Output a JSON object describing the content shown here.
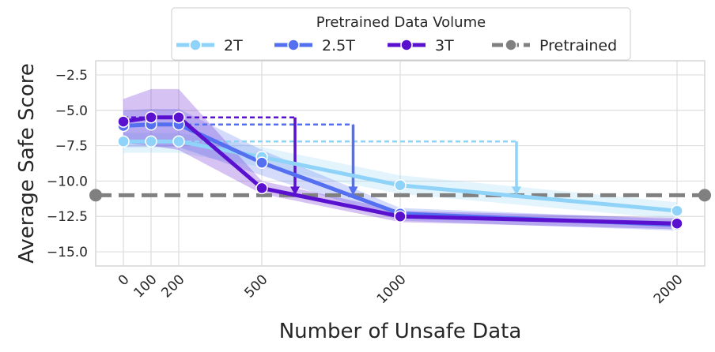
{
  "chart_data": {
    "type": "line",
    "title": "",
    "xlabel": "Number of Unsafe Data",
    "ylabel": "Average Safe Score",
    "x": [
      0,
      100,
      200,
      500,
      1000,
      2000
    ],
    "x_tick_labels": [
      "0",
      "100",
      "200",
      "500",
      "1000",
      "2000"
    ],
    "xlim": [
      -100,
      2100
    ],
    "ylim": [
      -16,
      -1.5
    ],
    "y_ticks": [
      -2.5,
      -5.0,
      -7.5,
      -10.0,
      -12.5,
      -15.0
    ],
    "y_tick_labels": [
      "−2.5",
      "−5.0",
      "−7.5",
      "−10.0",
      "−12.5",
      "−15.0"
    ],
    "grid": true,
    "legend": {
      "title": "Pretrained Data Volume",
      "placement": "top-center",
      "entries": [
        "2T",
        "2.5T",
        "3T",
        "Pretrained"
      ]
    },
    "series": [
      {
        "name": "2T",
        "color": "#8fd3f8",
        "values": [
          -7.2,
          -7.2,
          -7.2,
          -8.3,
          -10.3,
          -12.1
        ],
        "band_low": [
          -8.0,
          -8.0,
          -8.0,
          -9.0,
          -10.9,
          -12.7
        ],
        "band_high": [
          -6.6,
          -6.6,
          -6.6,
          -7.6,
          -9.6,
          -11.5
        ]
      },
      {
        "name": "2.5T",
        "color": "#5470f0",
        "values": [
          -6.1,
          -6.0,
          -6.0,
          -8.7,
          -12.3,
          -13.1
        ],
        "band_low": [
          -7.6,
          -7.6,
          -7.6,
          -9.6,
          -12.8,
          -13.5
        ],
        "band_high": [
          -5.0,
          -4.9,
          -4.9,
          -7.8,
          -11.9,
          -12.7
        ]
      },
      {
        "name": "3T",
        "color": "#5a11cf",
        "values": [
          -5.8,
          -5.5,
          -5.5,
          -10.5,
          -12.5,
          -13.0
        ],
        "band_low": [
          -7.3,
          -7.5,
          -7.8,
          -10.9,
          -12.9,
          -13.4
        ],
        "band_high": [
          -4.2,
          -3.5,
          -3.5,
          -10.0,
          -12.1,
          -12.6
        ]
      }
    ],
    "pretrained": {
      "name": "Pretrained",
      "value": -11.0,
      "color": "#808080"
    },
    "annotations": [
      {
        "series": "2T",
        "level": -7.2,
        "x_from": 0,
        "x_end": 1420,
        "arrow_to": -11.0,
        "color": "#8fd3f8"
      },
      {
        "series": "2.5T",
        "level": -6.0,
        "x_from": 0,
        "x_end": 830,
        "arrow_to": -11.0,
        "color": "#5470f0"
      },
      {
        "series": "3T",
        "level": -5.5,
        "x_from": 0,
        "x_end": 620,
        "arrow_to": -11.0,
        "color": "#5a11cf"
      }
    ]
  }
}
